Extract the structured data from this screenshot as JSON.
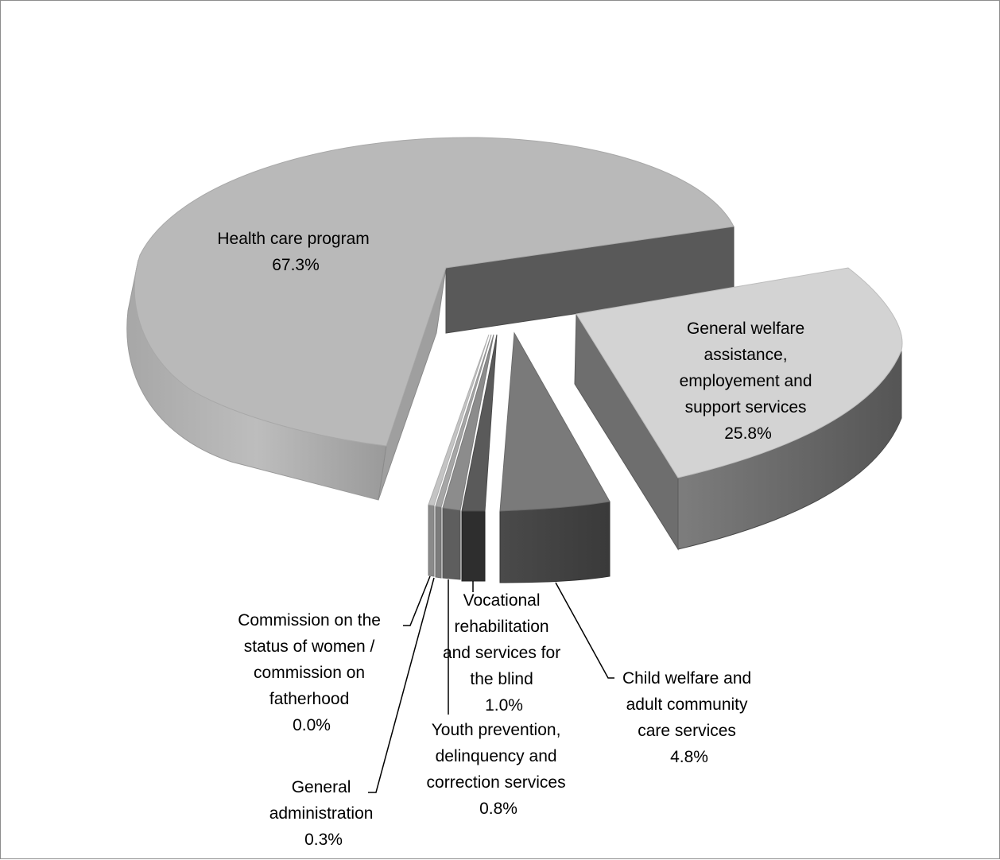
{
  "chart_data": {
    "type": "pie",
    "style": "3d-exploded",
    "title": "",
    "legend": "none",
    "colors": {
      "health": "#b9b9b9",
      "welfare": "#d3d3d3",
      "child": "#7a7a7a",
      "vocational": "#5a5a5a",
      "youth": "#8c8c8c",
      "admin": "#a6a6a6",
      "commission": "#c4c4c4",
      "line": "#000000"
    },
    "slices": [
      {
        "name_lines": [
          "Health care program"
        ],
        "pct": "67.3%",
        "value": 67.3
      },
      {
        "name_lines": [
          "General welfare",
          "assistance,",
          "employement and",
          "support services"
        ],
        "pct": "25.8%",
        "value": 25.8
      },
      {
        "name_lines": [
          "Child welfare and",
          "adult community",
          "care services"
        ],
        "pct": "4.8%",
        "value": 4.8
      },
      {
        "name_lines": [
          "Vocational",
          "rehabilitation",
          "and services for",
          "the blind"
        ],
        "pct": "1.0%",
        "value": 1.0
      },
      {
        "name_lines": [
          "Youth prevention,",
          "delinquency and",
          "correction services"
        ],
        "pct": "0.8%",
        "value": 0.8
      },
      {
        "name_lines": [
          "General",
          "administration"
        ],
        "pct": "0.3%",
        "value": 0.3
      },
      {
        "name_lines": [
          "Commission on the",
          "status of women /",
          "commission on",
          "fatherhood"
        ],
        "pct": "0.0%",
        "value": 0.0
      }
    ]
  }
}
